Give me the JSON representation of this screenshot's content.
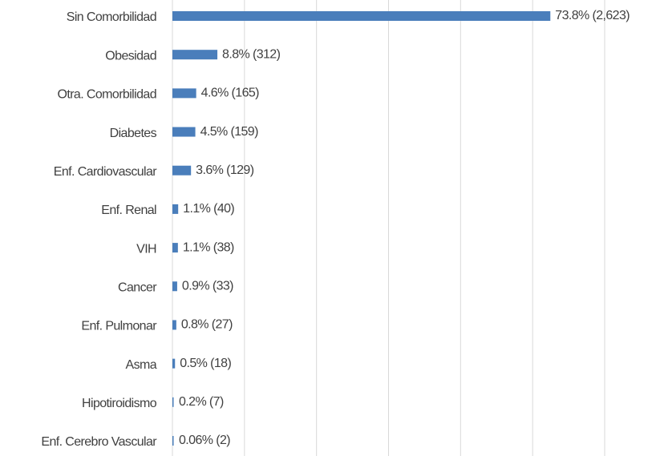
{
  "chart_data": {
    "type": "bar",
    "orientation": "horizontal",
    "categories": [
      "Sin Comorbilidad",
      "Obesidad",
      "Otra. Comorbilidad",
      "Diabetes",
      "Enf. Cardiovascular",
      "Enf. Renal",
      "VIH",
      "Cancer",
      "Enf. Pulmonar",
      "Asma",
      "Hipotiroidismo",
      "Enf. Cerebro Vascular"
    ],
    "values": [
      2623,
      312,
      165,
      159,
      129,
      40,
      38,
      33,
      27,
      18,
      7,
      2
    ],
    "value_labels": [
      "73.8% (2,623)",
      "8.8% (312)",
      "4.6% (165)",
      "4.5% (159)",
      "3.6% (129)",
      "1.1% (40)",
      "1.1% (38)",
      "0.9% (33)",
      "0.8% (27)",
      "0.5% (18)",
      "0.2% (7)",
      "0.06% (2)"
    ],
    "color": "#4a7ebb",
    "xlim": [
      0,
      3000
    ],
    "xticks": [
      0,
      500,
      1000,
      1500,
      2000,
      2500,
      3000
    ],
    "grid": true
  }
}
